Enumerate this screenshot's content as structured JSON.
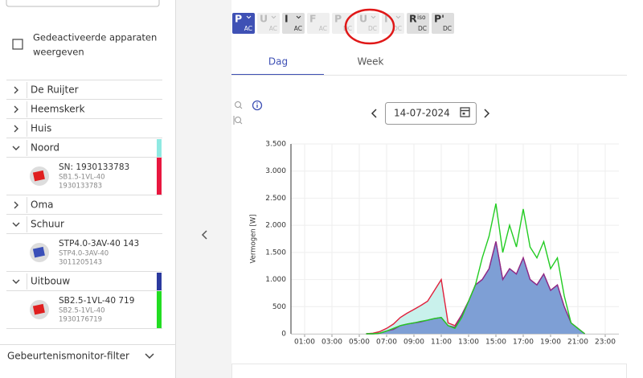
{
  "sidebar": {
    "show_inactive": {
      "label": "Gedeactiveerde apparaten weergeven",
      "checked": false
    },
    "tree": [
      {
        "label": "De Ruijter",
        "expanded": false,
        "bar_color": null,
        "devices": []
      },
      {
        "label": "Heemskerk",
        "expanded": false,
        "bar_color": null,
        "devices": []
      },
      {
        "label": "Huis",
        "expanded": false,
        "bar_color": null,
        "devices": []
      },
      {
        "label": "Noord",
        "expanded": true,
        "bar_color": "#8fe9e2",
        "devices": [
          {
            "name": "SN: 1930133783",
            "model": "SB1.5-1VL-40",
            "serial": "1930133783",
            "icon_color": "#e02020",
            "bar_color": "#e8173f"
          }
        ]
      },
      {
        "label": "Oma",
        "expanded": false,
        "bar_color": null,
        "devices": []
      },
      {
        "label": "Schuur",
        "expanded": true,
        "bar_color": null,
        "devices": [
          {
            "name": "STP4.0-3AV-40 143",
            "model": "STP4.0-3AV-40",
            "serial": "3011205143",
            "icon_color": "#3a4fb8",
            "bar_color": null
          }
        ]
      },
      {
        "label": "Uitbouw",
        "expanded": true,
        "bar_color": "#2b3a9e",
        "devices": [
          {
            "name": "SB2.5-1VL-40 719",
            "model": "SB2.5-1VL-40",
            "serial": "1930176719",
            "icon_color": "#e02020",
            "bar_color": "#22dd22"
          }
        ]
      }
    ],
    "filter": "Gebeurtenismonitor-filter"
  },
  "toolbar": [
    {
      "main": "P",
      "sub": "AC",
      "state": "selected",
      "caret": true
    },
    {
      "main": "U",
      "sub": "AC",
      "state": "disabled",
      "caret": true
    },
    {
      "main": "I",
      "sub": "AC",
      "state": "enabled",
      "caret": true
    },
    {
      "main": "F",
      "sub": "AC",
      "state": "disabled",
      "caret": false
    },
    {
      "main": "P",
      "sub": "DC",
      "state": "disabled",
      "caret": false
    },
    {
      "main": "U",
      "sub": "DC",
      "state": "disabled",
      "caret": true
    },
    {
      "main": "I",
      "sub": "DC",
      "state": "disabled",
      "caret": true
    },
    {
      "main": "R",
      "sup": "iso",
      "sub": "DC",
      "state": "enabled",
      "caret": false
    },
    {
      "main": "P'",
      "sub": "DC",
      "state": "enabled",
      "caret": false
    }
  ],
  "tabs": [
    {
      "label": "Dag",
      "selected": true
    },
    {
      "label": "Week",
      "selected": false
    }
  ],
  "date": "14-07-2024",
  "chart_data": {
    "type": "area",
    "y_label": "Vermogen [W]",
    "x": [
      5.5,
      6,
      6.5,
      7,
      7.5,
      8,
      8.5,
      9,
      9.5,
      10,
      10.5,
      11,
      11.5,
      12,
      12.5,
      13,
      13.5,
      14,
      14.5,
      15,
      15.5,
      16,
      16.5,
      17,
      17.5,
      18,
      18.5,
      19,
      19.5,
      20,
      20.5,
      21,
      21.5
    ],
    "series": [
      {
        "color": "#e0203c",
        "fill": "#c9f1ec",
        "values": [
          0,
          10,
          40,
          100,
          180,
          300,
          380,
          450,
          520,
          600,
          800,
          1000,
          200,
          150,
          350,
          600,
          900,
          1000,
          1200,
          1700,
          1000,
          1200,
          1100,
          1400,
          1000,
          900,
          1100,
          800,
          900,
          500,
          200,
          100,
          0
        ]
      },
      {
        "color": "#8a2a8a",
        "fill": "#7e9fd5",
        "values": [
          0,
          0,
          10,
          50,
          80,
          150,
          180,
          200,
          220,
          250,
          280,
          300,
          150,
          120,
          350,
          600,
          900,
          1000,
          1200,
          1700,
          1000,
          1200,
          1100,
          1400,
          1000,
          900,
          1100,
          800,
          900,
          500,
          200,
          100,
          0
        ]
      },
      {
        "color": "#22cc22",
        "fill": null,
        "values": [
          0,
          0,
          10,
          50,
          100,
          150,
          180,
          200,
          230,
          250,
          280,
          300,
          150,
          100,
          300,
          600,
          900,
          1400,
          1800,
          2400,
          1500,
          2000,
          1600,
          2300,
          1600,
          1400,
          1700,
          1200,
          1400,
          700,
          200,
          100,
          0
        ]
      }
    ],
    "xlim": [
      0,
      24
    ],
    "xticks": [
      {
        "value": 1,
        "label": "01:00"
      },
      {
        "value": 3,
        "label": "03:00"
      },
      {
        "value": 5,
        "label": "05:00"
      },
      {
        "value": 7,
        "label": "07:00"
      },
      {
        "value": 9,
        "label": "09:00"
      },
      {
        "value": 11,
        "label": "11:00"
      },
      {
        "value": 13,
        "label": "13:00"
      },
      {
        "value": 15,
        "label": "15:00"
      },
      {
        "value": 17,
        "label": "17:00"
      },
      {
        "value": 19,
        "label": "19:00"
      },
      {
        "value": 21,
        "label": "21:00"
      },
      {
        "value": 23,
        "label": "23:00"
      }
    ],
    "ylim": [
      0,
      3500
    ],
    "yticks": [
      0,
      500,
      {
        "value": 1000,
        "label": "1.000"
      },
      {
        "value": 1500,
        "label": "1.500"
      },
      {
        "value": 2000,
        "label": "2.000"
      },
      {
        "value": 2500,
        "label": "2.500"
      },
      {
        "value": 3000,
        "label": "3.000"
      },
      {
        "value": 3500,
        "label": "3.500"
      }
    ],
    "grid": true
  }
}
